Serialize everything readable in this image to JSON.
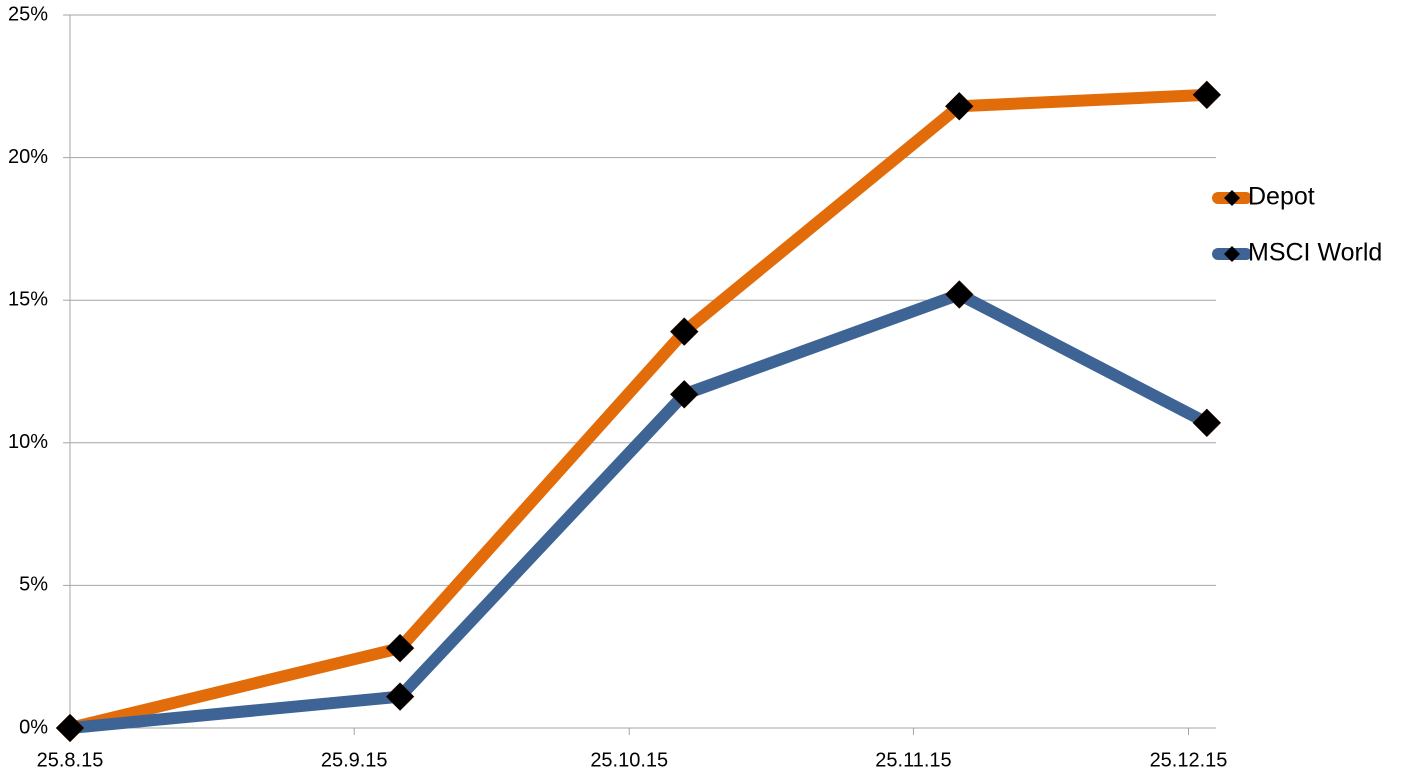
{
  "chart_data": {
    "type": "line",
    "x": [
      "2015-08-25",
      "2015-09-30",
      "2015-10-31",
      "2015-11-30",
      "2015-12-27"
    ],
    "series": [
      {
        "name": "Depot",
        "color": "#e36c0a",
        "marker_color": "#000000",
        "values": [
          0,
          2.8,
          13.9,
          21.8,
          22.2
        ]
      },
      {
        "name": "MSCI World",
        "color": "#3e6496",
        "marker_color": "#000000",
        "values": [
          0,
          1.1,
          11.7,
          15.2,
          10.7
        ]
      }
    ],
    "xlim": [
      "2015-08-25",
      "2015-12-28"
    ],
    "xticks": [
      {
        "value": "2015-08-25",
        "label": "25.8.15"
      },
      {
        "value": "2015-09-25",
        "label": "25.9.15"
      },
      {
        "value": "2015-10-25",
        "label": "25.10.15"
      },
      {
        "value": "2015-11-25",
        "label": "25.11.15"
      },
      {
        "value": "2015-12-25",
        "label": "25.12.15"
      }
    ],
    "ylim": [
      0,
      25
    ],
    "yticks": [
      {
        "value": 0,
        "label": "0%"
      },
      {
        "value": 5,
        "label": "5%"
      },
      {
        "value": 10,
        "label": "10%"
      },
      {
        "value": 15,
        "label": "15%"
      },
      {
        "value": 20,
        "label": "20%"
      },
      {
        "value": 25,
        "label": "25%"
      }
    ],
    "grid": true,
    "legend": "right"
  }
}
